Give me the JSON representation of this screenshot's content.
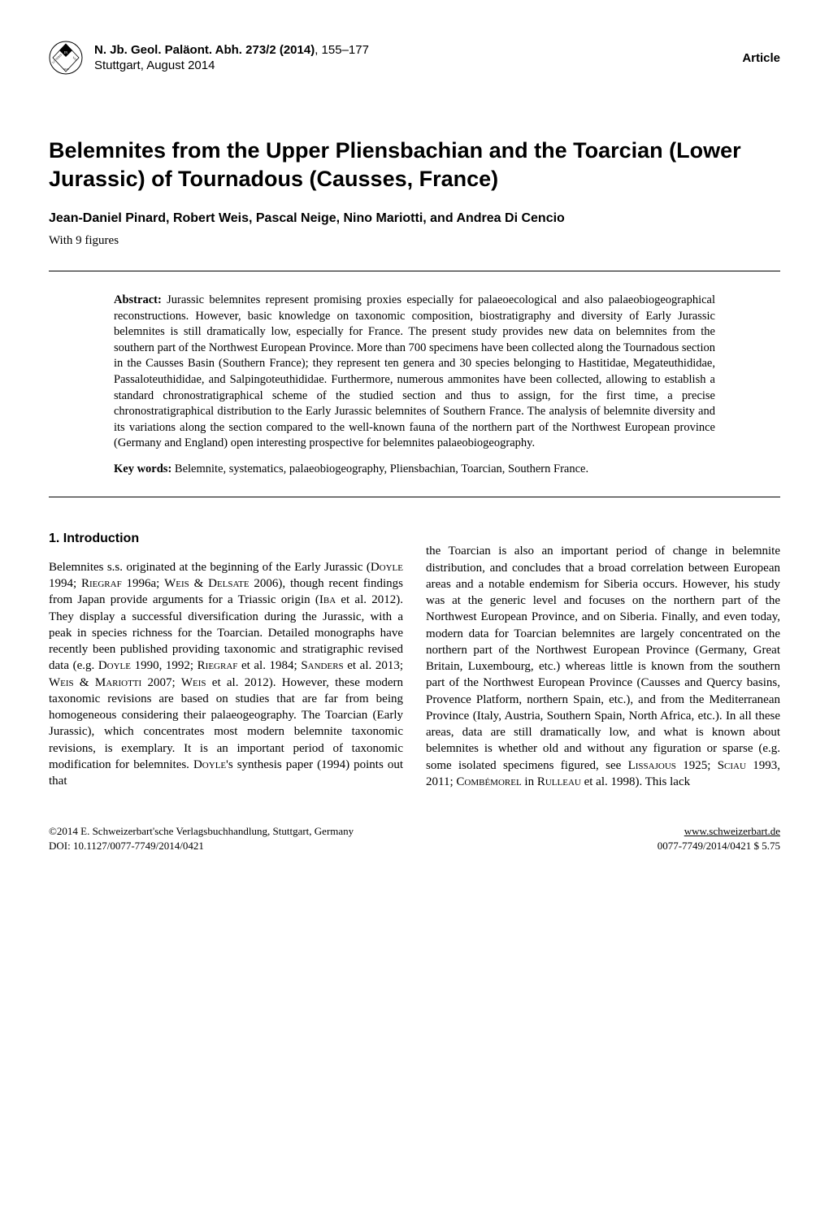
{
  "header": {
    "journal_bold": "N. Jb. Geol. Paläont. Abh. 273/2 (2014)",
    "pages": ", 155–177",
    "publisher": "Stuttgart, August 2014",
    "article_label": "Article"
  },
  "title": "Belemnites from the Upper Pliensbachian and the Toarcian (Lower Jurassic) of Tournadous (Causses, France)",
  "authors": "Jean-Daniel Pinard, Robert Weis, Pascal Neige, Nino Mariotti, and Andrea Di Cencio",
  "figures_note": "With 9 figures",
  "abstract": {
    "label": "Abstract:",
    "text": " Jurassic belemnites represent promising proxies especially for palaeoecological and also palaeobiogeographical reconstructions. However, basic knowledge on taxonomic composition, biostratigraphy and diversity of Early Jurassic belemnites is still dramatically low, especially for France. The present study provides new data on belemnites from the southern part of the Northwest European Province. More than 700 specimens have been collected along the Tournadous section in the Causses Basin (Southern France); they represent ten genera and 30 species belonging to Hastitidae, Megateuthididae, Passaloteuthididae, and Salpingoteuthididae. Furthermore, numerous ammonites have been collected, allowing to establish a standard chronostratigraphical scheme of the studied section and thus to assign, for the first time, a precise chronostratigraphical distribution to the Early Jurassic belemnites of Southern France. The analysis of belemnite diversity and its variations along the section compared to the well-known fauna of the northern part of the Northwest European province (Germany and England) open interesting prospective for belemnites palaeobiogeography."
  },
  "keywords": {
    "label": "Key words:",
    "text": " Belemnite, systematics, palaeobiogeography, Pliensbachian, Toarcian, Southern France."
  },
  "section_heading": "1. Introduction",
  "body": {
    "col1_html": "Belemnites s.s. originated at the beginning of the Early Jurassic (<span class='smallcaps'>Doyle</span> 1994; <span class='smallcaps'>Riegraf</span> 1996a; <span class='smallcaps'>Weis</span> &amp; <span class='smallcaps'>Delsate</span> 2006), though recent findings from Japan provide arguments for a Triassic origin (<span class='smallcaps'>Iba</span> et al. 2012). They display a successful diversification during the Jurassic, with a peak in species richness for the Toarcian. Detailed monographs have recently been published providing taxonomic and stratigraphic revised data (e.g. <span class='smallcaps'>Doyle</span> 1990, 1992; <span class='smallcaps'>Riegraf</span> et al. 1984; <span class='smallcaps'>Sanders</span> et al. 2013; <span class='smallcaps'>Weis</span> &amp; <span class='smallcaps'>Mariotti</span> 2007; <span class='smallcaps'>Weis</span> et al. 2012). However, these modern taxonomic revisions are based on studies that are far from being homogeneous considering their palaeogeography. The Toarcian (Early Jurassic), which concentrates most modern belemnite taxonomic revisions, is exemplary. It is an important period of taxonomic modification for belemnites. <span class='smallcaps'>Doyle</span>'s synthesis paper (1994) points out that",
    "col2_html": "the Toarcian is also an important period of change in belemnite distribution, and concludes that a broad correlation between European areas and a notable endemism for Siberia occurs. However, his study was at the generic level and focuses on the northern part of the Northwest European Province, and on Siberia. Finally, and even today, modern data for Toarcian belemnites are largely concentrated on the northern part of the Northwest European Province (Germany, Great Britain, Luxembourg, etc.) whereas little is known from the southern part of the Northwest European Province (Causses and Quercy basins, Provence Platform, northern Spain, etc.), and from the Mediterranean Province (Italy, Austria, Southern Spain, North Africa, etc.). In all these areas, data are still dramatically low, and what is known about belemnites is whether old and without any figuration or sparse (e.g. some isolated specimens figured, see <span class='smallcaps'>Lissajous</span> 1925; <span class='smallcaps'>Sciau</span> 1993, 2011; <span class='smallcaps'>Combémorel</span> in <span class='smallcaps'>Rulleau</span> et al. 1998). This lack"
  },
  "footer": {
    "copyright": "©2014 E. Schweizerbart'sche Verlagsbuchhandlung, Stuttgart, Germany",
    "doi": "DOI: 10.1127/0077-7749/2014/0421",
    "url": "www.schweizerbart.de",
    "price": "0077-7749/2014/0421 $ 5.75"
  },
  "colors": {
    "text": "#000000",
    "bg": "#ffffff",
    "rule": "#000000"
  },
  "typography": {
    "title_fontsize": 27,
    "body_fontsize": 15,
    "abstract_fontsize": 14.5,
    "heading_fontsize": 16,
    "footer_fontsize": 13
  }
}
